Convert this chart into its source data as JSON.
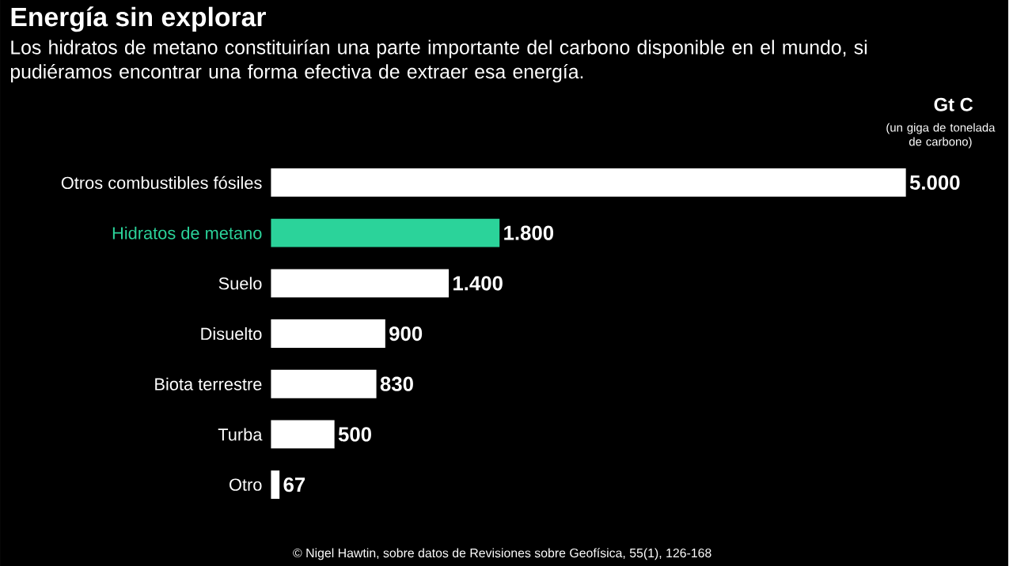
{
  "chart_data": {
    "type": "bar",
    "orientation": "horizontal",
    "title": "Energía sin explorar",
    "subtitle": "Los hidratos de metano constituirían una parte importante del carbono disponible en el mundo, si pudiéramos encontrar una forma efectiva de extraer esa energía.",
    "xlabel": "Gt C",
    "categories": [
      "Otros combustibles fósiles",
      "Hidratos de metano",
      "Suelo",
      "Disuelto",
      "Biota terrestre",
      "Turba",
      "Otro"
    ],
    "values": [
      5000,
      1800,
      1400,
      900,
      830,
      500,
      67
    ],
    "value_labels": [
      "5.000",
      "1.800",
      "1.400",
      "900",
      "830",
      "500",
      "67"
    ],
    "colors": [
      "#ffffff",
      "#2bd39a",
      "#ffffff",
      "#ffffff",
      "#ffffff",
      "#ffffff",
      "#ffffff"
    ],
    "annotations": [
      "(un giga de tonelada de carbono)",
      "© Nigel Hawtin, sobre datos de Revisiones sobre Geofísica, 55(1), 126-168"
    ]
  }
}
